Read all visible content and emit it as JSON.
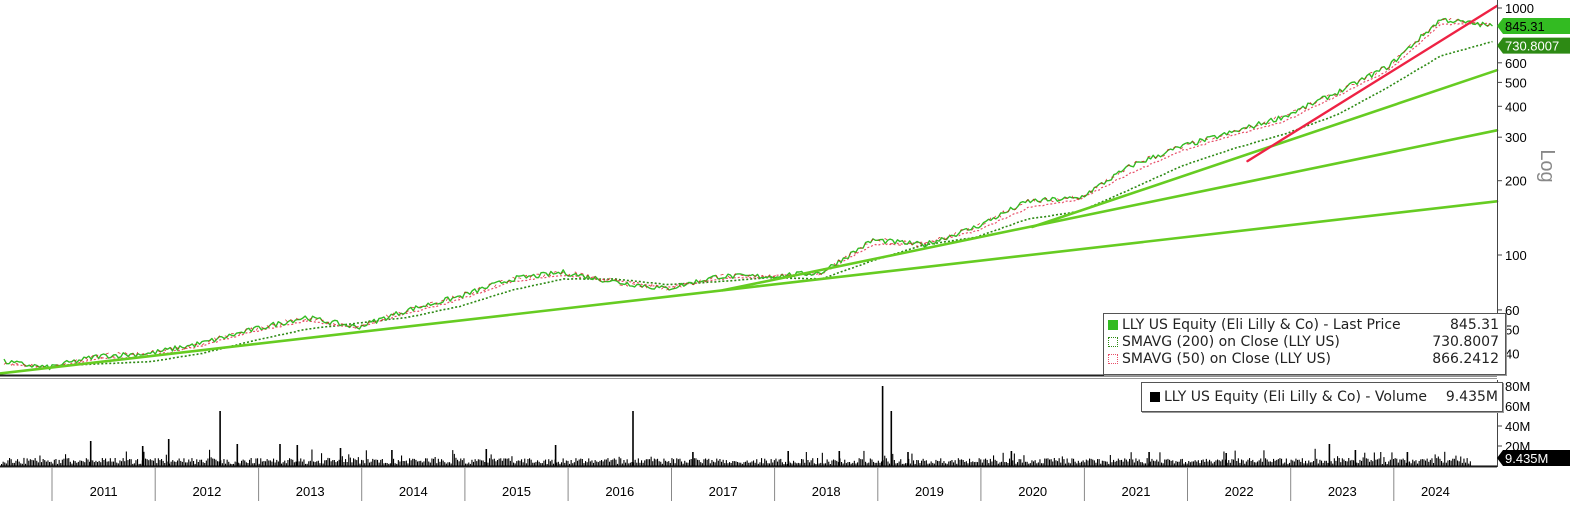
{
  "chart_data": [
    {
      "type": "line",
      "title": "",
      "ylabel": "Log",
      "yscale": "log",
      "ylim": [
        33,
        1000
      ],
      "xlim": [
        "2010-07-01",
        "2024-12-31"
      ],
      "x_tick_labels": [
        "2011",
        "2012",
        "2013",
        "2014",
        "2015",
        "2016",
        "2017",
        "2018",
        "2019",
        "2020",
        "2021",
        "2022",
        "2023",
        "2024"
      ],
      "y_ticks": [
        40,
        50,
        60,
        100,
        200,
        300,
        400,
        500,
        600,
        1000
      ],
      "grid": false,
      "legend_position": "bottom-right",
      "last_price_label": "845.31",
      "smavg200_label": "730.8007",
      "series": [
        {
          "name": "LLY US Equity (Eli Lilly & Co) - Last Price",
          "legend_value": "845.31",
          "color": "#33bb22",
          "x": [
            "2010-07",
            "2010-12",
            "2011-06",
            "2011-12",
            "2012-06",
            "2012-12",
            "2013-06",
            "2013-12",
            "2014-06",
            "2014-12",
            "2015-06",
            "2015-12",
            "2016-06",
            "2016-12",
            "2017-06",
            "2017-12",
            "2018-06",
            "2018-12",
            "2019-06",
            "2019-12",
            "2020-06",
            "2020-12",
            "2021-06",
            "2021-12",
            "2022-06",
            "2022-12",
            "2023-06",
            "2023-12",
            "2024-06",
            "2024-12"
          ],
          "values": [
            37,
            35,
            39,
            40,
            44,
            50,
            56,
            51,
            60,
            68,
            80,
            85,
            78,
            73,
            82,
            82,
            85,
            115,
            110,
            130,
            165,
            170,
            230,
            276,
            315,
            366,
            455,
            583,
            900,
            845.31
          ]
        },
        {
          "name": "SMAVG (200) on Close (LLY US)",
          "legend_value": "730.8007",
          "color": "#2d8a14",
          "x": [
            "2011-04",
            "2011-12",
            "2012-06",
            "2012-12",
            "2013-06",
            "2013-12",
            "2014-06",
            "2014-12",
            "2015-06",
            "2015-12",
            "2016-06",
            "2016-12",
            "2017-06",
            "2017-12",
            "2018-06",
            "2018-12",
            "2019-06",
            "2019-12",
            "2020-06",
            "2020-12",
            "2021-06",
            "2021-12",
            "2022-06",
            "2022-12",
            "2023-06",
            "2023-12",
            "2024-06",
            "2024-12"
          ],
          "values": [
            36,
            37,
            40,
            45,
            50,
            53,
            56,
            62,
            72,
            80,
            80,
            76,
            78,
            81,
            80,
            95,
            110,
            118,
            140,
            150,
            185,
            230,
            270,
            310,
            370,
            480,
            640,
            730.8
          ]
        },
        {
          "name": "SMAVG (50) on Close (LLY US)",
          "legend_value": "866.2412",
          "color": "#e8506a",
          "x": [
            "2010-08",
            "2010-12",
            "2011-06",
            "2011-12",
            "2012-06",
            "2012-12",
            "2013-06",
            "2013-12",
            "2014-06",
            "2014-12",
            "2015-06",
            "2015-12",
            "2016-06",
            "2016-12",
            "2017-06",
            "2017-12",
            "2018-06",
            "2018-12",
            "2019-06",
            "2019-12",
            "2020-06",
            "2020-12",
            "2021-06",
            "2021-12",
            "2022-06",
            "2022-12",
            "2023-06",
            "2023-12",
            "2024-06",
            "2024-12"
          ],
          "values": [
            36,
            35,
            38,
            39,
            43,
            49,
            54,
            51,
            58,
            66,
            78,
            83,
            79,
            74,
            80,
            82,
            84,
            110,
            112,
            125,
            155,
            168,
            215,
            265,
            305,
            350,
            440,
            560,
            860,
            866.24
          ]
        }
      ],
      "trendlines": [
        {
          "color": "#66cc22",
          "x": [
            "2010-07-01",
            "2024-12-31"
          ],
          "values": [
            33.2,
            165
          ]
        },
        {
          "color": "#66cc22",
          "x": [
            "2017-07-01",
            "2024-12-31"
          ],
          "values": [
            72,
            320
          ]
        },
        {
          "color": "#66cc22",
          "x": [
            "2020-07-01",
            "2024-12-31"
          ],
          "values": [
            130,
            560
          ]
        },
        {
          "color": "#ee2244",
          "x": [
            "2022-08-01",
            "2024-12-31"
          ],
          "values": [
            240,
            1020
          ]
        }
      ]
    },
    {
      "type": "bar",
      "title": "",
      "ylabel": "",
      "ylim": [
        0,
        85
      ],
      "y_tick_labels": [
        "20M",
        "40M",
        "60M",
        "80M"
      ],
      "y_ticks": [
        20,
        40,
        60,
        80
      ],
      "last_volume_label": "9.435M",
      "legend_position": "top-right",
      "series": [
        {
          "name": "LLY US Equity (Eli Lilly & Co) - Volume",
          "legend_value": "9.435M",
          "color": "#000000",
          "x": [
            "2011-05",
            "2011-11",
            "2012-02",
            "2012-08",
            "2012-10",
            "2013-03",
            "2013-05",
            "2013-10",
            "2014-04",
            "2015-03",
            "2015-11",
            "2016-08",
            "2017-03",
            "2018-02",
            "2018-08",
            "2019-01",
            "2019-02",
            "2019-04",
            "2020-04",
            "2021-08",
            "2022-05",
            "2023-05",
            "2023-08",
            "2024-02"
          ],
          "values": [
            25,
            20,
            27,
            55,
            22,
            22,
            21,
            18,
            16,
            17,
            21,
            55,
            14,
            15,
            15,
            80,
            55,
            14,
            15,
            14,
            13,
            22,
            16,
            14
          ]
        }
      ]
    }
  ]
}
